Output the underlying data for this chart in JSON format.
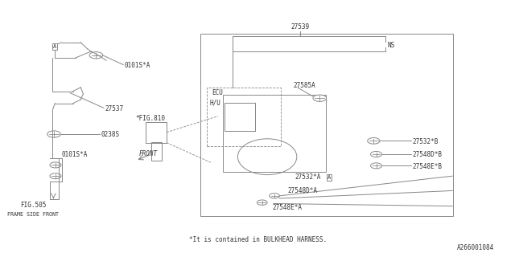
{
  "bg_color": "#ffffff",
  "line_color": "#888888",
  "text_color": "#333333",
  "fig_width": 6.4,
  "fig_height": 3.2,
  "dpi": 100,
  "label_texts": {
    "27539": "27539",
    "NS": "NS",
    "ECU": "ECU",
    "HU": "H/U",
    "27585A": "27585A",
    "27532_B": "27532*B",
    "27548D_B": "27548D*B",
    "27548E_B": "27548E*B",
    "27532_A": "27532*A",
    "27548D_A": "27548D*A",
    "27548E_A": "27548E*A",
    "FIG810": "*FIG.810",
    "FIG505": "FIG.505",
    "FRAME_SIDE": "FRAME SIDE FRONT",
    "0101S_A_top": "0101S*A",
    "27537": "27537",
    "0238S": "0238S",
    "0101S_A_bot": "0101S*A",
    "FRONT": "FRONT",
    "footnote": "*It is contained in BULKHEAD HARNESS.",
    "part_number": "A266001084"
  }
}
